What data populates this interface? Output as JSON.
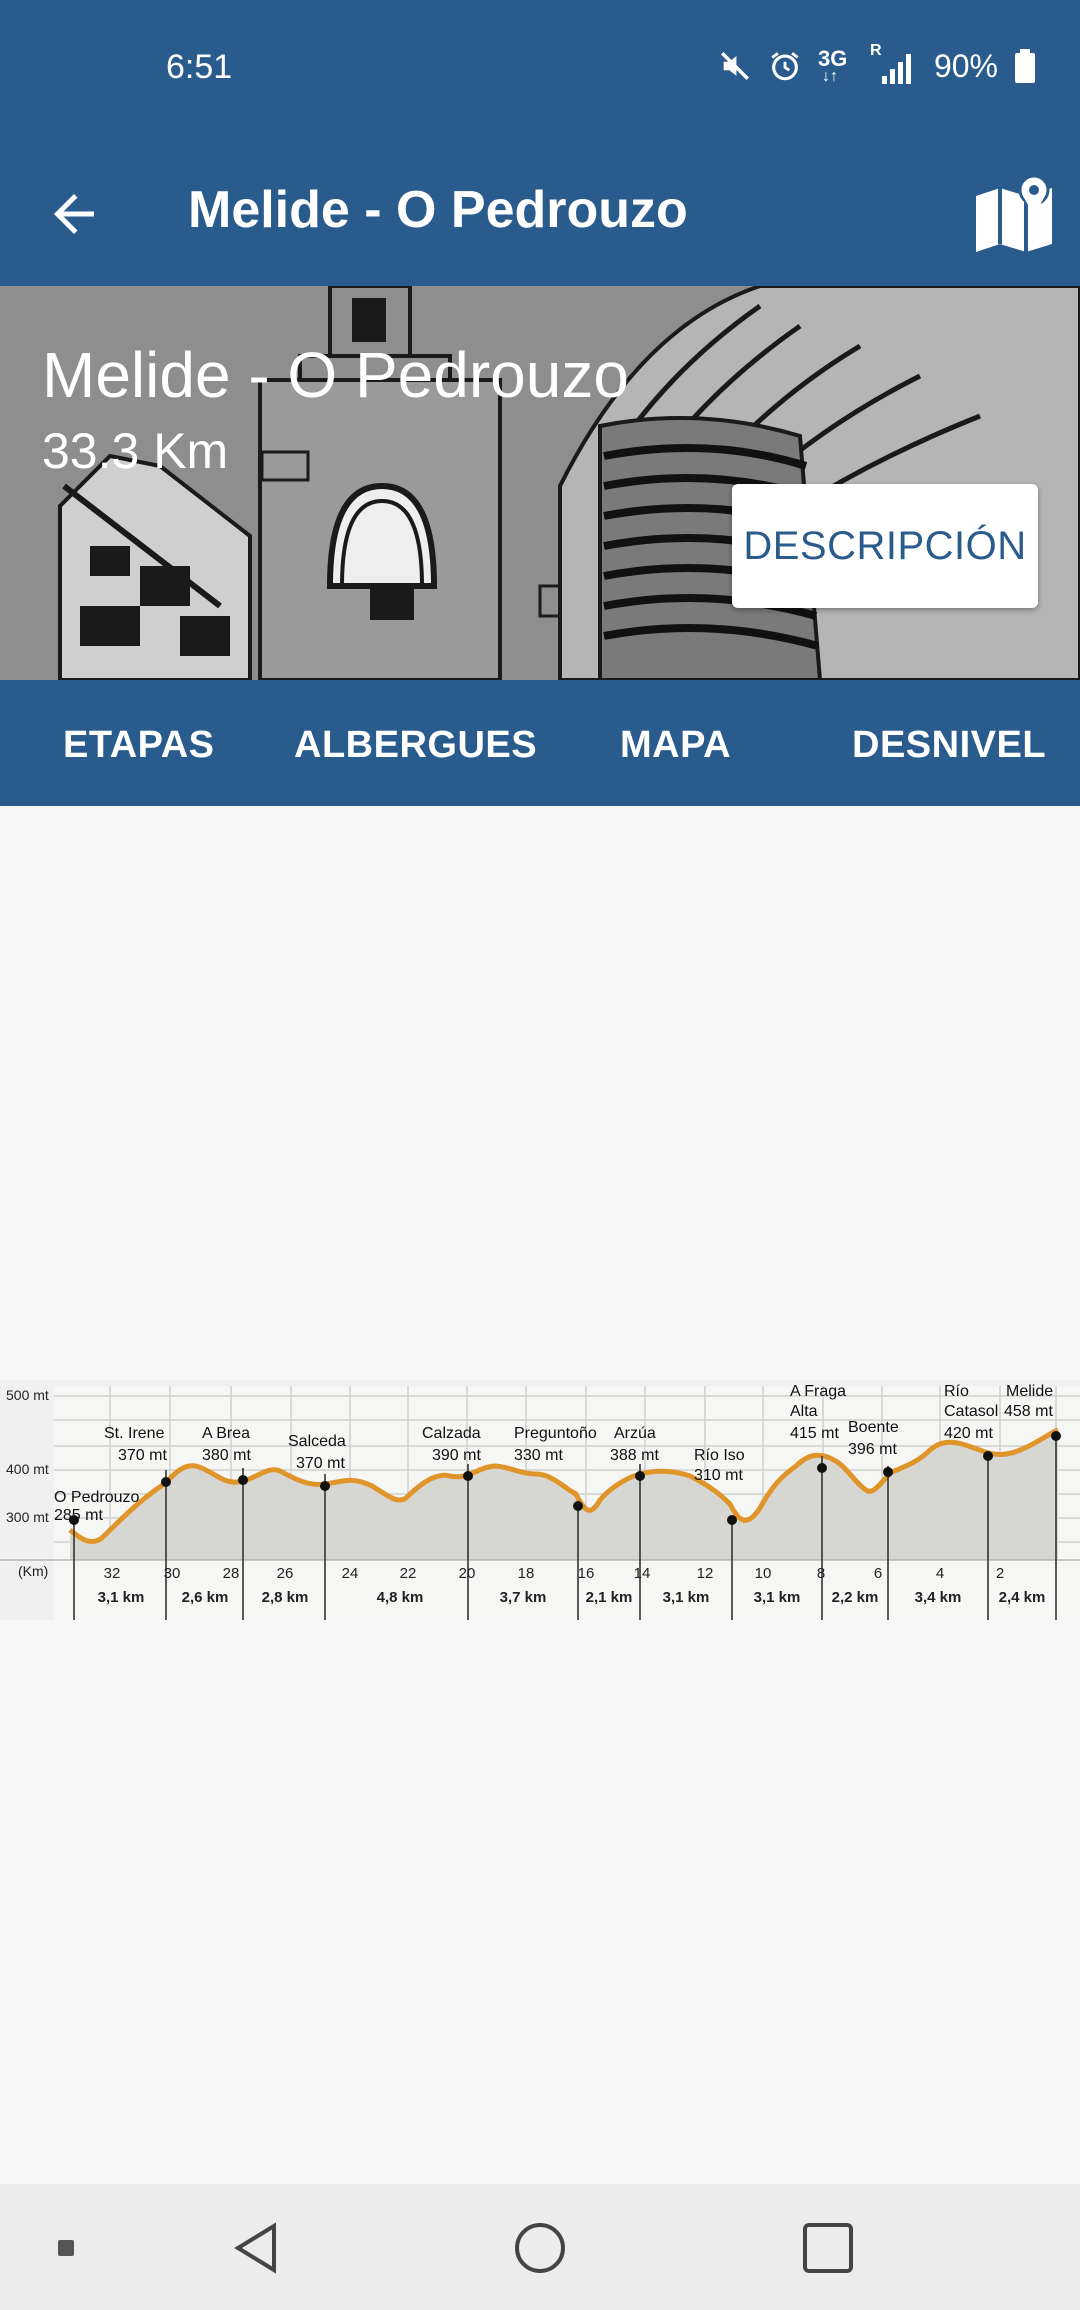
{
  "status_bar": {
    "time": "6:51",
    "network": "3G",
    "network_sup": "R",
    "battery": "90%",
    "icons": [
      "mute-icon",
      "alarm-icon",
      "data-arrows-icon",
      "signal-icon",
      "battery-icon"
    ]
  },
  "app_bar": {
    "title": "Melide - O Pedrouzo",
    "back_icon": "arrow-left-icon",
    "map_icon": "map-pin-icon"
  },
  "hero": {
    "title": "Melide - O Pedrouzo",
    "distance": "33.3 Km",
    "description_button": "DESCRIPCIÓN"
  },
  "tabs": [
    {
      "label": "ETAPAS"
    },
    {
      "label": "ALBERGUES"
    },
    {
      "label": "MAPA"
    },
    {
      "label": "DESNIVEL"
    }
  ],
  "profile": {
    "y_ticks": [
      "500 mt",
      "400 mt",
      "300 mt"
    ],
    "unit": "(Km)",
    "x_ticks": [
      "32",
      "30",
      "28",
      "26",
      "24",
      "22",
      "20",
      "18",
      "16",
      "14",
      "12",
      "10",
      "8",
      "6",
      "4",
      "2"
    ],
    "segments": [
      "3,1 km",
      "2,6 km",
      "2,8 km",
      "4,8 km",
      "3,7 km",
      "2,1 km",
      "3,1 km",
      "3,1 km",
      "2,2 km",
      "3,4 km",
      "2,4 km"
    ],
    "points": [
      {
        "name": "O Pedrouzo",
        "elev": "285 mt"
      },
      {
        "name": "St. Irene",
        "elev": "370 mt"
      },
      {
        "name": "A Brea",
        "elev": "380 mt"
      },
      {
        "name": "Salceda",
        "elev": "370 mt"
      },
      {
        "name": "Calzada",
        "elev": "390 mt"
      },
      {
        "name": "Preguntoño",
        "elev": "330 mt"
      },
      {
        "name": "Arzúa",
        "elev": "388 mt"
      },
      {
        "name": "Río Iso",
        "elev": "310 mt"
      },
      {
        "name": "A Fraga",
        "name2": "Alta",
        "elev": "415 mt"
      },
      {
        "name": "Boente",
        "elev": "396 mt"
      },
      {
        "name": "Río",
        "name2": "Catasol",
        "elev": "420 mt"
      },
      {
        "name": "Melide",
        "elev": "458 mt"
      }
    ],
    "colors": {
      "line": "#e0952a",
      "fill": "#d6d6d2",
      "grid": "#c9c9c9"
    }
  },
  "nav_bar": {
    "icons": [
      "recent-dot-icon",
      "back-triangle-icon",
      "home-circle-icon",
      "overview-square-icon"
    ]
  }
}
